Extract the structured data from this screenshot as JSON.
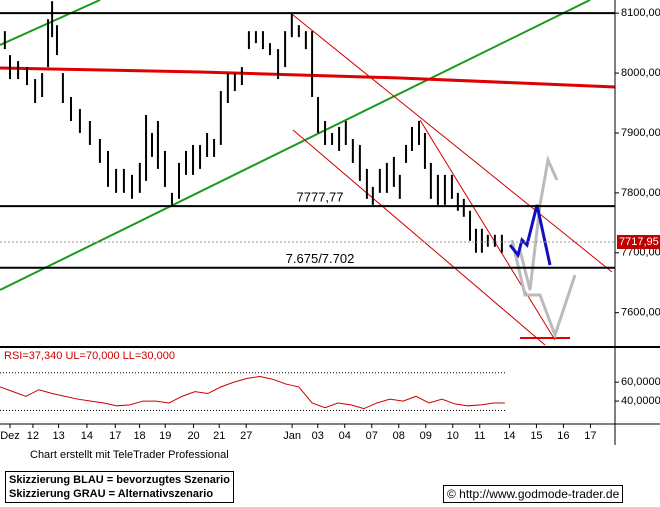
{
  "chart_data": [
    {
      "type": "ohlc",
      "name": "price",
      "x": [
        -0.19,
        0,
        0.3,
        0.63,
        0.93,
        1.19,
        1.41,
        1.56,
        1.74,
        1.96,
        2.26,
        2.59,
        2.96,
        3.33,
        3.63,
        3.93,
        4.22,
        4.52,
        4.81,
        5.04,
        5.26,
        5.48,
        5.74,
        6,
        6.26,
        6.52,
        6.78,
        7.04,
        7.3,
        7.56,
        7.81,
        8.07,
        8.33,
        8.59,
        8.85,
        9.11,
        9.37,
        9.63,
        9.93,
        10.19,
        10.44,
        10.7,
        10.96,
        11.19,
        11.41,
        11.67,
        11.93,
        12.19,
        12.44,
        12.7,
        12.96,
        13.22,
        13.44,
        13.7,
        13.96,
        14.22,
        14.44,
        14.67,
        14.89,
        15.15,
        15.37,
        15.59,
        15.85,
        16.11,
        16.37,
        16.59,
        16.81,
        17.04,
        17.26,
        17.48,
        17.7,
        17.96,
        18.22
      ],
      "high": [
        8070,
        8030,
        8020,
        8010,
        7990,
        8000,
        8090,
        8120,
        8080,
        8000,
        7960,
        7940,
        7920,
        7890,
        7870,
        7840,
        7840,
        7830,
        7850,
        7930,
        7900,
        7920,
        7870,
        7800,
        7850,
        7870,
        7880,
        7880,
        7900,
        7890,
        7970,
        8000,
        8000,
        8010,
        8070,
        8070,
        8070,
        8050,
        8040,
        8070,
        8100,
        8080,
        8070,
        8070,
        7960,
        7920,
        7900,
        7910,
        7920,
        7890,
        7880,
        7840,
        7810,
        7840,
        7850,
        7860,
        7830,
        7880,
        7910,
        7920,
        7900,
        7850,
        7830,
        7830,
        7830,
        7800,
        7790,
        7770,
        7740,
        7740,
        7730,
        7730,
        7730
      ],
      "low": [
        8040,
        7990,
        7990,
        7980,
        7950,
        7960,
        8010,
        8060,
        8030,
        7950,
        7920,
        7900,
        7880,
        7850,
        7810,
        7800,
        7800,
        7790,
        7800,
        7820,
        7860,
        7840,
        7810,
        7780,
        7790,
        7830,
        7830,
        7840,
        7860,
        7860,
        7880,
        7950,
        7970,
        7980,
        8040,
        8050,
        8040,
        8030,
        7990,
        8010,
        8060,
        8060,
        8040,
        7960,
        7900,
        7880,
        7880,
        7870,
        7880,
        7850,
        7820,
        7790,
        7780,
        7800,
        7800,
        7810,
        7790,
        7850,
        7870,
        7880,
        7840,
        7790,
        7780,
        7780,
        7790,
        7770,
        7760,
        7720,
        7700,
        7700,
        7710,
        7710,
        7700
      ],
      "color": "#000000",
      "xlim": [
        -0.37,
        22.41
      ],
      "ylim": [
        7546,
        8122
      ],
      "yticks": [
        {
          "value": 8100,
          "label": "8100,00"
        },
        {
          "value": 8000,
          "label": "8000,00"
        },
        {
          "value": 7900,
          "label": "7900,00"
        },
        {
          "value": 7800,
          "label": "7800,00"
        },
        {
          "value": 7700,
          "label": "7700,00"
        },
        {
          "value": 7600,
          "label": "7600,00"
        }
      ],
      "hlines": [
        8100
      ],
      "levels": [
        {
          "value": 7777.77,
          "label": "7777,77"
        },
        {
          "value": 7675,
          "label": "7.675/7.702"
        }
      ],
      "last": {
        "value": 7717.95,
        "label": "7717,95"
      }
    },
    {
      "type": "line",
      "name": "rsi",
      "title": "RSI=37,340 UL=70,000 LL=30,000",
      "x": [
        -0.37,
        0.11,
        0.59,
        1.07,
        1.56,
        2.04,
        2.52,
        3,
        3.48,
        3.96,
        4.44,
        4.93,
        5.41,
        5.89,
        6.37,
        6.85,
        7.33,
        7.81,
        8.3,
        8.78,
        9.26,
        9.74,
        10.22,
        10.7,
        11.19,
        11.67,
        12.15,
        12.63,
        13.11,
        13.59,
        14.07,
        14.56,
        15.04,
        15.52,
        16,
        16.48,
        16.96,
        17.44,
        17.93,
        18.33
      ],
      "values": [
        55,
        50,
        45,
        52,
        48,
        45,
        42,
        40,
        38,
        35,
        36,
        40,
        40,
        38,
        45,
        50,
        48,
        55,
        60,
        64,
        66,
        63,
        58,
        55,
        38,
        33,
        38,
        36,
        32,
        38,
        42,
        40,
        45,
        38,
        42,
        37,
        35,
        36,
        38,
        38
      ],
      "color": "#cc0000",
      "bands": [
        70,
        30
      ],
      "xlim": [
        -0.37,
        22.41
      ],
      "ylim": [
        20,
        94
      ],
      "yticks": [
        {
          "value": 60,
          "label": "60,0000"
        },
        {
          "value": 40,
          "label": "40,0000"
        }
      ],
      "xticks": [
        {
          "value": 0,
          "label": "Dez"
        },
        {
          "value": 0.85,
          "label": "12"
        },
        {
          "value": 1.8,
          "label": "13"
        },
        {
          "value": 2.85,
          "label": "14"
        },
        {
          "value": 3.9,
          "label": "17"
        },
        {
          "value": 4.8,
          "label": "18"
        },
        {
          "value": 5.75,
          "label": "19"
        },
        {
          "value": 6.8,
          "label": "20"
        },
        {
          "value": 7.75,
          "label": "21"
        },
        {
          "value": 8.75,
          "label": "27"
        },
        {
          "value": 10.45,
          "label": "Jan"
        },
        {
          "value": 11.4,
          "label": "03"
        },
        {
          "value": 12.4,
          "label": "04"
        },
        {
          "value": 13.4,
          "label": "07"
        },
        {
          "value": 14.4,
          "label": "08"
        },
        {
          "value": 15.4,
          "label": "09"
        },
        {
          "value": 16.4,
          "label": "10"
        },
        {
          "value": 17.4,
          "label": "11"
        },
        {
          "value": 18.5,
          "label": "14"
        },
        {
          "value": 19.5,
          "label": "15"
        },
        {
          "value": 20.5,
          "label": "16"
        },
        {
          "value": 21.5,
          "label": "17"
        }
      ]
    }
  ],
  "footer": {
    "credit": "Chart erstellt mit TeleTrader Professional",
    "legend_blue": "Skizzierung BLAU = bevorzugtes Szenario",
    "legend_gray": "Skizzierung GRAU = Alternativszenario",
    "url": "© http://www.godmode-trader.de"
  }
}
